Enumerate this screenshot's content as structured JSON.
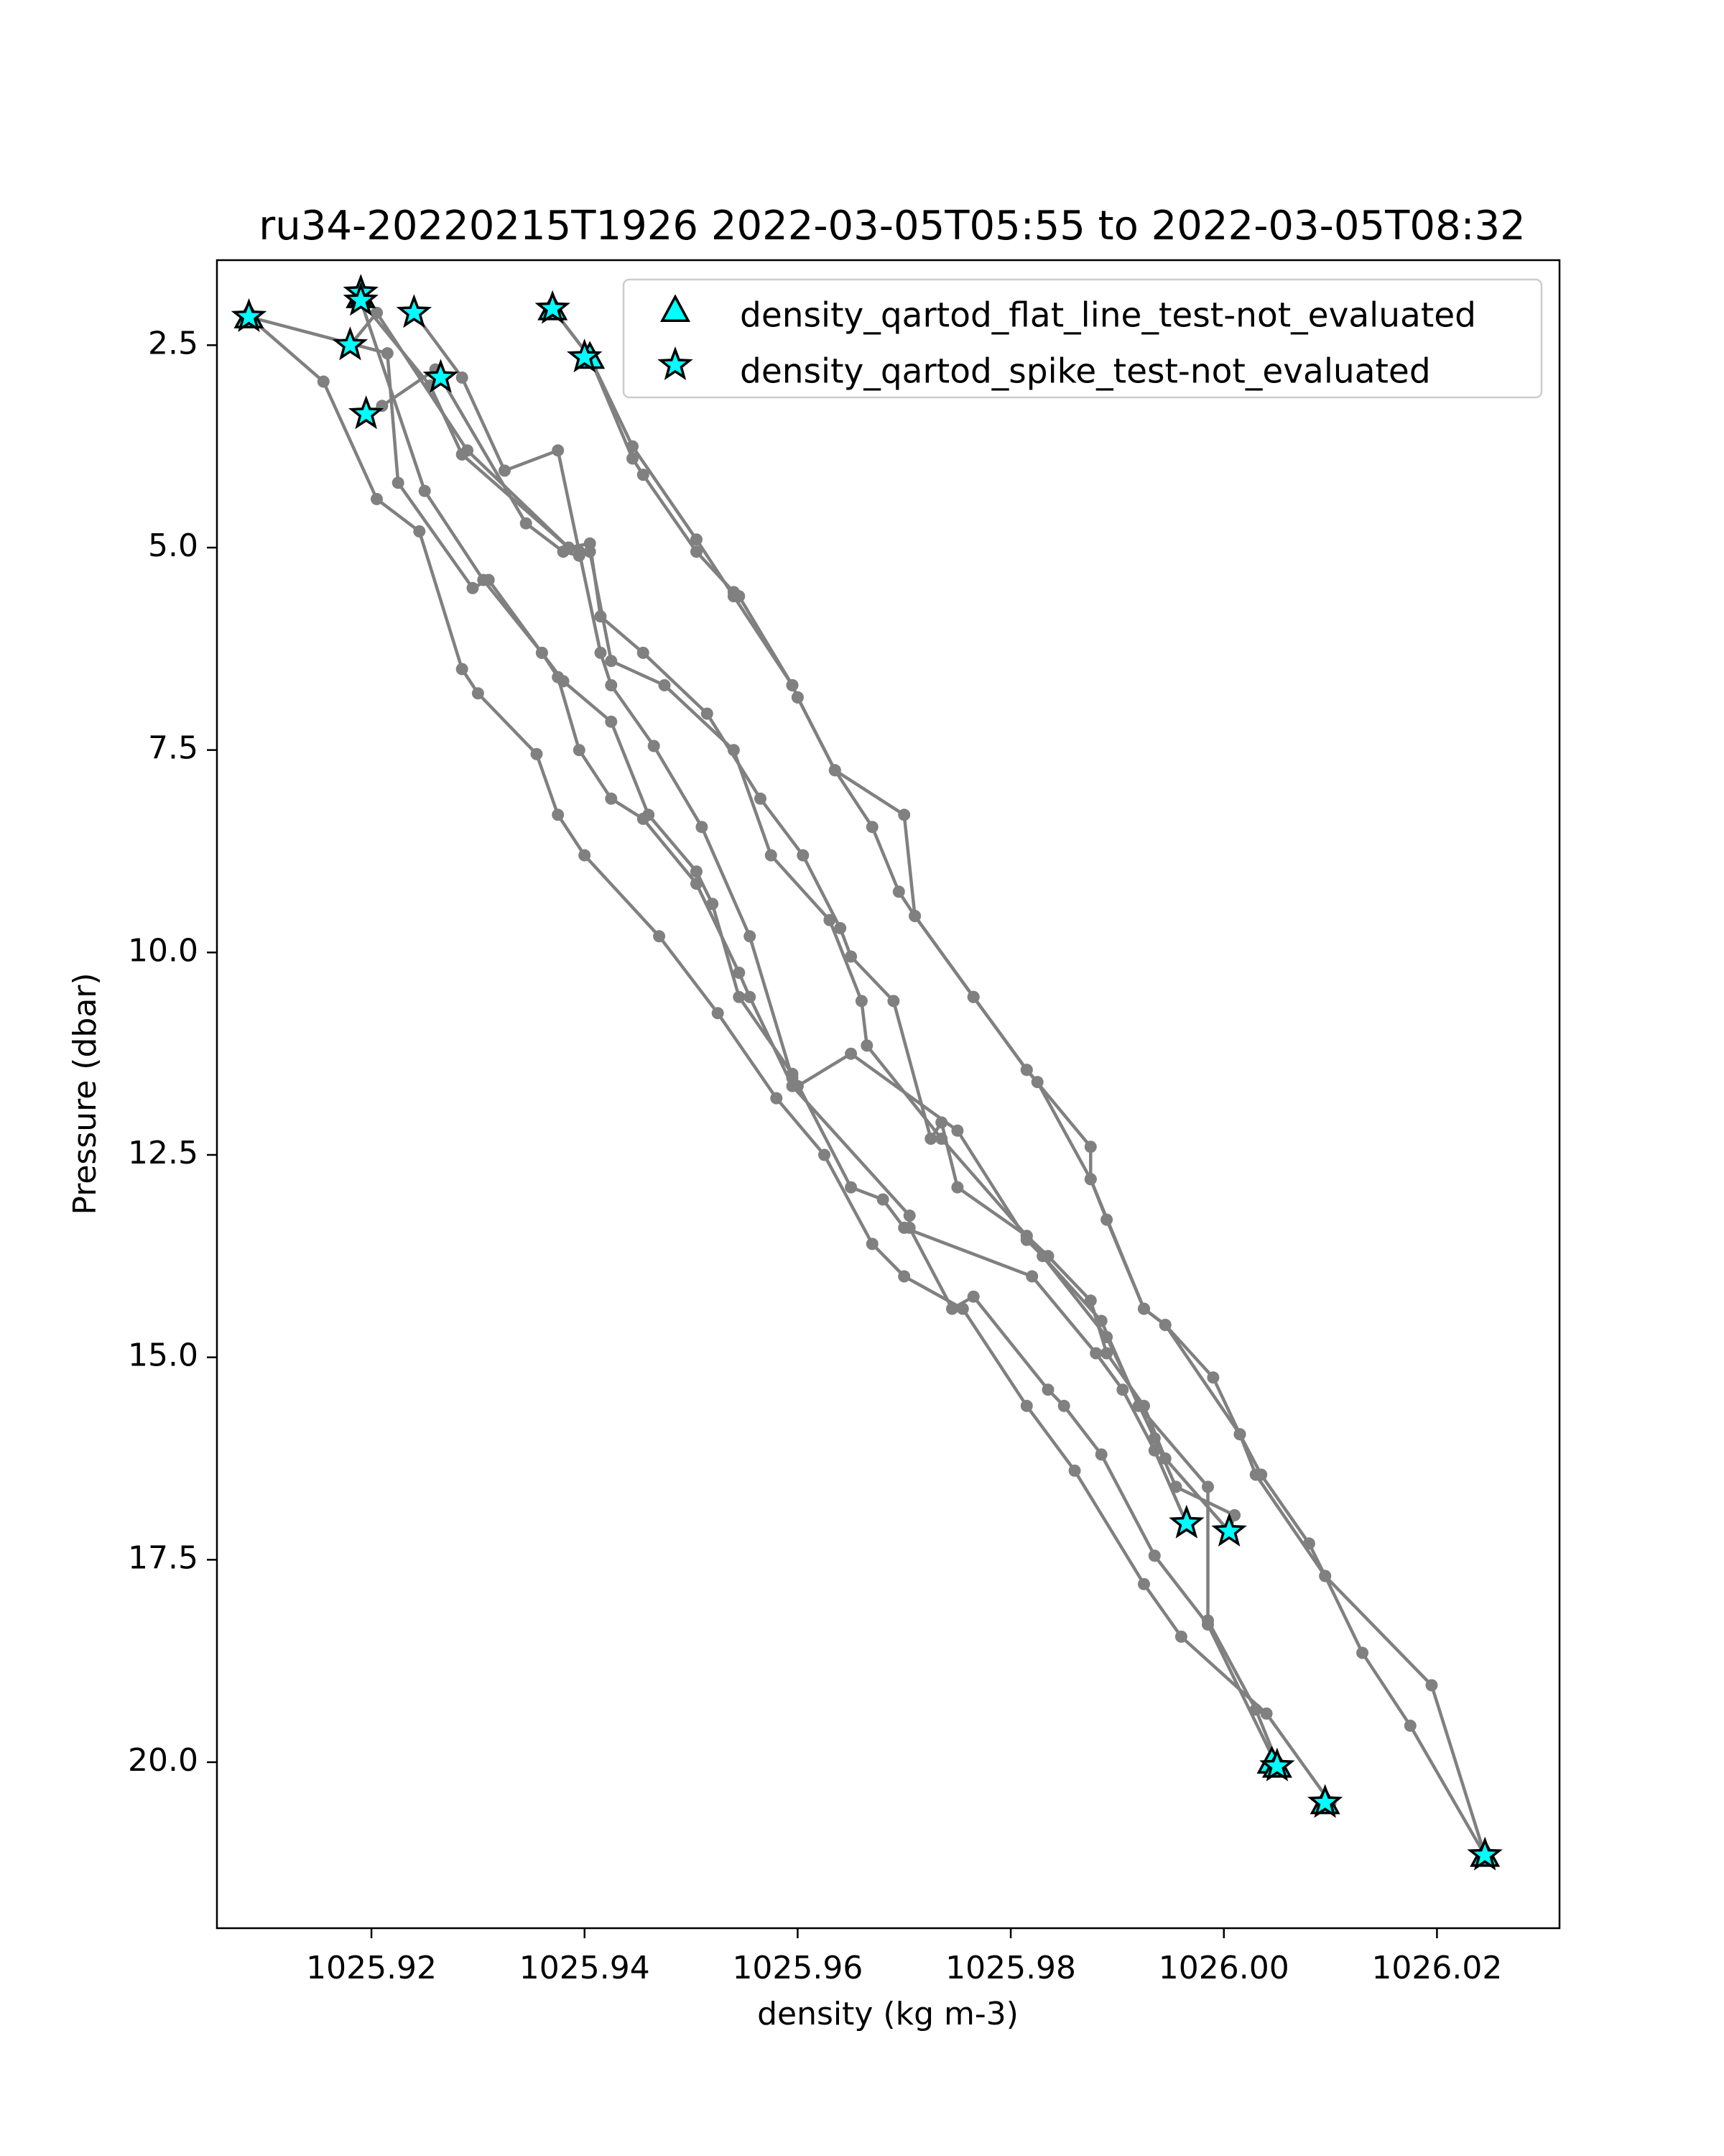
{
  "chart_data": {
    "type": "scatter",
    "title": "ru34-20220215T1926 2022-03-05T05:55 to 2022-03-05T08:32",
    "xlabel": "density (kg m-3)",
    "ylabel": "Pressure (dbar)",
    "xlim": [
      1025.9055,
      1026.0315
    ],
    "ylim": [
      22.05,
      1.45
    ],
    "y_inverted": true,
    "grid": false,
    "legend_placement": "upper right",
    "xticks": [
      1025.92,
      1025.94,
      1025.96,
      1025.98,
      1026.0,
      1026.02
    ],
    "xtick_labels": [
      "1025.92",
      "1025.94",
      "1025.96",
      "1025.98",
      "1026.00",
      "1026.02"
    ],
    "yticks": [
      2.5,
      5.0,
      7.5,
      10.0,
      12.5,
      15.0,
      17.5,
      20.0
    ],
    "ytick_labels": [
      "2.5",
      "5.0",
      "7.5",
      "10.0",
      "12.5",
      "15.0",
      "17.5",
      "20.0"
    ],
    "colors": {
      "profile_line": "#808080",
      "flag_fill": "#00ffff",
      "flag_edge": "#000000",
      "axes": "#000000"
    },
    "profiles": [
      [
        [
          1025.9085,
          2.15
        ],
        [
          1025.9155,
          2.95
        ],
        [
          1025.9205,
          4.4
        ],
        [
          1025.9245,
          4.8
        ],
        [
          1025.9285,
          6.5
        ],
        [
          1025.93,
          6.8
        ],
        [
          1025.9355,
          7.55
        ],
        [
          1025.9375,
          8.3
        ],
        [
          1025.94,
          8.8
        ],
        [
          1025.947,
          9.8
        ],
        [
          1025.9525,
          10.75
        ],
        [
          1025.958,
          11.8
        ],
        [
          1025.9625,
          12.5
        ],
        [
          1025.967,
          13.6
        ],
        [
          1025.97,
          14.0
        ],
        [
          1025.9755,
          14.4
        ],
        [
          1025.9815,
          15.6
        ],
        [
          1025.986,
          16.4
        ],
        [
          1025.9925,
          17.8
        ],
        [
          1025.996,
          18.45
        ],
        [
          1026.004,
          19.4
        ],
        [
          1026.01,
          20.5
        ]
      ],
      [
        [
          1025.9085,
          2.15
        ],
        [
          1025.9215,
          2.6
        ],
        [
          1025.9225,
          4.2
        ],
        [
          1025.9295,
          5.5
        ],
        [
          1025.931,
          5.4
        ],
        [
          1025.936,
          6.3
        ],
        [
          1025.9375,
          6.6
        ],
        [
          1025.9395,
          7.5
        ],
        [
          1025.9425,
          8.1
        ],
        [
          1025.9455,
          8.35
        ],
        [
          1025.9505,
          9.15
        ],
        [
          1025.9545,
          10.25
        ],
        [
          1025.9555,
          10.55
        ],
        [
          1025.9595,
          11.65
        ],
        [
          1025.9705,
          13.25
        ],
        [
          1025.9705,
          13.4
        ],
        [
          1025.9745,
          14.4
        ],
        [
          1025.9765,
          14.25
        ],
        [
          1025.9835,
          15.4
        ],
        [
          1025.985,
          15.6
        ],
        [
          1025.9885,
          16.2
        ],
        [
          1025.9935,
          17.45
        ],
        [
          1025.9985,
          18.3
        ],
        [
          1026.005,
          20.05
        ]
      ],
      [
        [
          1025.919,
          1.85
        ],
        [
          1025.919,
          1.95
        ],
        [
          1025.925,
          4.3
        ],
        [
          1025.9305,
          5.4
        ],
        [
          1025.936,
          6.3
        ],
        [
          1025.938,
          6.65
        ],
        [
          1025.9425,
          7.15
        ],
        [
          1025.946,
          8.3
        ],
        [
          1025.9505,
          9.0
        ],
        [
          1025.952,
          9.4
        ],
        [
          1025.9545,
          10.55
        ],
        [
          1025.9595,
          11.5
        ],
        [
          1025.965,
          12.9
        ],
        [
          1025.968,
          13.05
        ],
        [
          1025.97,
          13.4
        ],
        [
          1025.982,
          14.0
        ],
        [
          1025.988,
          14.95
        ],
        [
          1025.9905,
          15.4
        ],
        [
          1025.9935,
          16.15
        ],
        [
          1025.9965,
          17.05
        ]
      ],
      [
        [
          1025.919,
          1.85
        ],
        [
          1025.919,
          1.95
        ],
        [
          1025.9255,
          3.0
        ],
        [
          1025.9285,
          3.85
        ],
        [
          1025.9385,
          5.0
        ],
        [
          1025.9405,
          4.95
        ],
        [
          1025.9415,
          5.85
        ],
        [
          1025.9455,
          6.3
        ],
        [
          1025.9515,
          7.05
        ],
        [
          1025.9565,
          8.1
        ],
        [
          1025.9605,
          8.8
        ],
        [
          1025.964,
          9.7
        ],
        [
          1025.965,
          10.05
        ],
        [
          1025.969,
          10.6
        ],
        [
          1025.9725,
          12.3
        ],
        [
          1025.9735,
          12.1
        ],
        [
          1025.975,
          12.9
        ],
        [
          1025.9815,
          13.5
        ],
        [
          1025.9835,
          13.75
        ],
        [
          1025.9875,
          14.3
        ],
        [
          1025.989,
          14.95
        ],
        [
          1025.9925,
          15.6
        ],
        [
          1025.9945,
          16.25
        ],
        [
          1026.0005,
          17.15
        ]
      ],
      [
        [
          1025.924,
          2.1
        ],
        [
          1025.9285,
          2.9
        ],
        [
          1025.9325,
          4.05
        ],
        [
          1025.9375,
          3.8
        ],
        [
          1025.9395,
          5.05
        ],
        [
          1025.9415,
          6.3
        ],
        [
          1025.9425,
          6.7
        ],
        [
          1025.9465,
          7.45
        ],
        [
          1025.951,
          8.45
        ],
        [
          1025.9555,
          9.8
        ],
        [
          1025.9595,
          11.55
        ],
        [
          1025.96,
          11.65
        ],
        [
          1025.965,
          11.25
        ],
        [
          1025.975,
          12.2
        ],
        [
          1025.9815,
          13.55
        ],
        [
          1025.983,
          13.75
        ],
        [
          1025.9885,
          14.55
        ],
        [
          1025.992,
          15.6
        ],
        [
          1025.9985,
          16.6
        ],
        [
          1025.9985,
          18.25
        ],
        [
          1026.003,
          19.35
        ],
        [
          1026.005,
          20.0
        ]
      ],
      [
        [
          1025.918,
          2.5
        ],
        [
          1025.9205,
          2.1
        ],
        [
          1025.929,
          3.8
        ],
        [
          1025.9385,
          5.0
        ],
        [
          1025.9405,
          5.05
        ],
        [
          1025.9425,
          6.4
        ],
        [
          1025.9475,
          6.7
        ],
        [
          1025.954,
          7.5
        ],
        [
          1025.9575,
          8.8
        ],
        [
          1025.963,
          9.6
        ],
        [
          1025.966,
          10.6
        ],
        [
          1025.9665,
          11.15
        ],
        [
          1025.9735,
          12.3
        ],
        [
          1025.9815,
          13.5
        ],
        [
          1025.989,
          14.75
        ],
        [
          1025.9935,
          16.0
        ],
        [
          1025.9955,
          16.6
        ],
        [
          1026.001,
          16.95
        ],
        [
          1026.0005,
          17.15
        ]
      ],
      [
        [
          1025.9195,
          3.35
        ],
        [
          1025.921,
          3.25
        ],
        [
          1025.926,
          2.8
        ],
        [
          1025.9265,
          2.9
        ],
        [
          1025.9345,
          4.7
        ],
        [
          1025.938,
          5.05
        ],
        [
          1025.9395,
          5.1
        ]
      ],
      [
        [
          1025.937,
          2.05
        ],
        [
          1025.9405,
          2.65
        ],
        [
          1025.9445,
          3.9
        ],
        [
          1025.9455,
          4.1
        ],
        [
          1025.9505,
          5.05
        ],
        [
          1025.954,
          5.55
        ],
        [
          1025.9545,
          5.6
        ],
        [
          1025.9595,
          6.7
        ],
        [
          1025.96,
          6.85
        ],
        [
          1025.9635,
          7.75
        ],
        [
          1025.967,
          8.45
        ],
        [
          1025.9695,
          9.25
        ],
        [
          1025.971,
          9.55
        ],
        [
          1025.9765,
          10.55
        ],
        [
          1025.9815,
          11.45
        ],
        [
          1025.9825,
          11.6
        ],
        [
          1025.9875,
          12.8
        ],
        [
          1025.989,
          13.3
        ],
        [
          1025.9925,
          14.4
        ],
        [
          1025.9945,
          14.6
        ],
        [
          1025.999,
          15.25
        ],
        [
          1026.0015,
          15.95
        ],
        [
          1026.0035,
          16.45
        ],
        [
          1026.008,
          17.3
        ],
        [
          1026.0095,
          17.7
        ],
        [
          1026.013,
          18.65
        ],
        [
          1026.0175,
          19.55
        ],
        [
          1026.0245,
          21.15
        ]
      ],
      [
        [
          1025.937,
          2.05
        ],
        [
          1025.9405,
          2.65
        ],
        [
          1025.9445,
          3.75
        ],
        [
          1025.9505,
          4.9
        ],
        [
          1025.954,
          5.6
        ],
        [
          1025.9595,
          6.7
        ],
        [
          1025.96,
          6.85
        ],
        [
          1025.9635,
          7.75
        ],
        [
          1025.97,
          8.3
        ],
        [
          1025.971,
          9.55
        ],
        [
          1025.9765,
          10.55
        ],
        [
          1025.9815,
          11.45
        ],
        [
          1025.9875,
          12.4
        ],
        [
          1025.9875,
          12.8
        ],
        [
          1025.9925,
          14.4
        ],
        [
          1025.9945,
          14.6
        ],
        [
          1026.0015,
          15.95
        ],
        [
          1026.003,
          16.45
        ],
        [
          1026.0095,
          17.7
        ],
        [
          1026.0195,
          19.05
        ],
        [
          1026.0245,
          21.15
        ]
      ]
    ],
    "series": [
      {
        "name": "density_qartod_flat_line_test-not_evaluated",
        "marker": "triangle",
        "points": [
          [
            1025.9085,
            2.15
          ],
          [
            1025.919,
            1.9
          ],
          [
            1025.937,
            2.05
          ],
          [
            1025.9405,
            2.65
          ],
          [
            1026.0045,
            20.0
          ],
          [
            1026.005,
            20.05
          ],
          [
            1026.0095,
            20.5
          ],
          [
            1026.0245,
            21.15
          ]
        ]
      },
      {
        "name": "density_qartod_spike_test-not_evaluated",
        "marker": "star",
        "points": [
          [
            1025.9085,
            2.15
          ],
          [
            1025.918,
            2.5
          ],
          [
            1025.919,
            1.85
          ],
          [
            1025.919,
            1.95
          ],
          [
            1025.9195,
            3.35
          ],
          [
            1025.924,
            2.1
          ],
          [
            1025.9265,
            2.9
          ],
          [
            1025.937,
            2.05
          ],
          [
            1025.94,
            2.65
          ],
          [
            1025.9965,
            17.05
          ],
          [
            1026.0005,
            17.15
          ],
          [
            1026.005,
            20.05
          ],
          [
            1026.0095,
            20.5
          ],
          [
            1026.0245,
            21.15
          ]
        ]
      }
    ]
  }
}
